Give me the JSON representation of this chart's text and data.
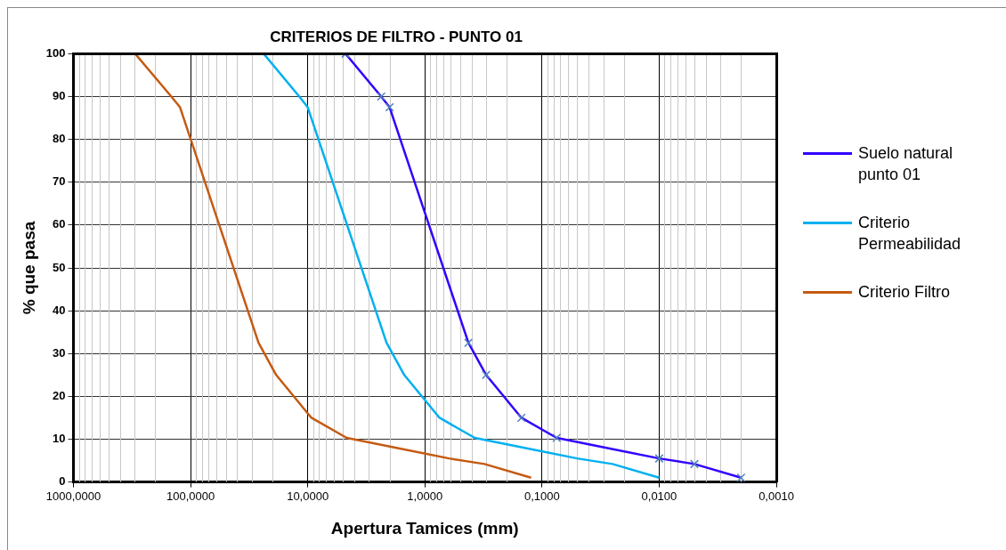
{
  "chart_data": {
    "type": "line",
    "title": "CRITERIOS DE FILTRO - PUNTO 01",
    "xlabel": "Apertura Tamices (mm)",
    "ylabel": "% que pasa",
    "log": "x",
    "grid": true,
    "legend": "right",
    "line_style": "solid",
    "xlim": [
      1000,
      0.001
    ],
    "xticks": [
      {
        "value": 1000,
        "label": "1000,0000"
      },
      {
        "value": 100,
        "label": "100,0000"
      },
      {
        "value": 10,
        "label": "10,0000"
      },
      {
        "value": 1,
        "label": "1,0000"
      },
      {
        "value": 0.1,
        "label": "0,1000"
      },
      {
        "value": 0.01,
        "label": "0,0100"
      },
      {
        "value": 0.001,
        "label": "0,0010"
      }
    ],
    "ylim": [
      0,
      100
    ],
    "yticks": [
      0,
      10,
      20,
      30,
      40,
      50,
      60,
      70,
      80,
      90,
      100
    ],
    "series": [
      {
        "name": "Suelo natural punto 01",
        "color": "#3300ff",
        "marker": "cross",
        "x": [
          4.75,
          2.36,
          2.0,
          0.425,
          0.3,
          0.15,
          0.075,
          0.01,
          0.005,
          0.002
        ],
        "values": [
          100,
          90,
          87.5,
          32.5,
          25,
          15,
          10.3,
          5.5,
          4.2,
          1
        ]
      },
      {
        "name": "Criterio Permeabilidad",
        "color": "#00b0f0",
        "marker": "none",
        "x": [
          23.75,
          11.8,
          10,
          2.125,
          1.5,
          0.75,
          0.375,
          0.05,
          0.025,
          0.01
        ],
        "values": [
          100,
          90,
          87.5,
          32.5,
          25,
          15,
          10.3,
          5.5,
          4.2,
          1
        ]
      },
      {
        "name": "Criterio Filtro",
        "color": "#c55a11",
        "marker": "none",
        "x": [
          297,
          146,
          123,
          26.3,
          18.6,
          9.3,
          4.65,
          0.62,
          0.31,
          0.124
        ],
        "values": [
          100,
          90,
          87.5,
          32.5,
          25,
          15,
          10.3,
          5.5,
          4.2,
          1
        ]
      }
    ]
  }
}
